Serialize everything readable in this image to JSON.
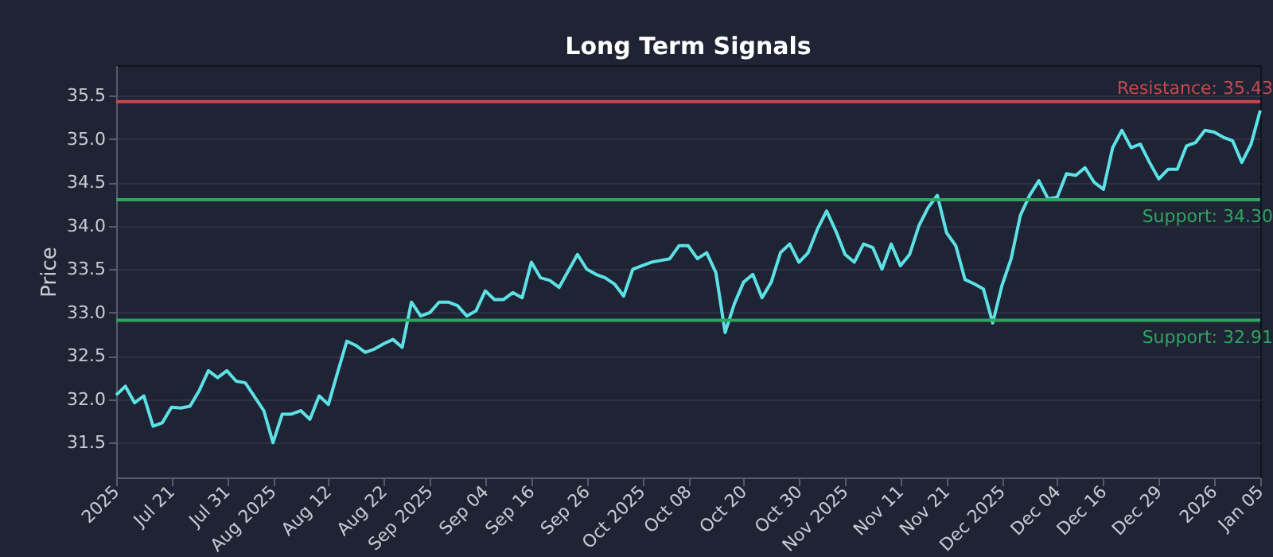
{
  "chart_data": {
    "type": "line",
    "title": "Long Term Signals",
    "ylabel": "Price",
    "categories": [
      "2025",
      null,
      null,
      null,
      null,
      null,
      "Jul 21",
      null,
      null,
      null,
      null,
      null,
      "Jul 31",
      null,
      null,
      null,
      null,
      "Aug 2025",
      null,
      null,
      null,
      null,
      null,
      "Aug 12",
      null,
      null,
      null,
      null,
      null,
      "Aug 22",
      null,
      null,
      null,
      null,
      "Sep 2025",
      null,
      null,
      null,
      null,
      null,
      "Sep 04",
      null,
      null,
      null,
      null,
      "Sep 16",
      null,
      null,
      null,
      null,
      null,
      "Sep 26",
      null,
      null,
      null,
      null,
      null,
      "Oct 2025",
      null,
      null,
      null,
      null,
      "Oct 08",
      null,
      null,
      null,
      null,
      null,
      "Oct 20",
      null,
      null,
      null,
      null,
      null,
      "Oct 30",
      null,
      null,
      null,
      null,
      "Nov 2025",
      null,
      null,
      null,
      null,
      null,
      "Nov 11",
      null,
      null,
      null,
      null,
      "Nov 21",
      null,
      null,
      null,
      null,
      null,
      "Dec 2025",
      null,
      null,
      null,
      null,
      null,
      "Dec 04",
      null,
      null,
      null,
      null,
      "Dec 16",
      null,
      null,
      null,
      null,
      null,
      "Dec 29",
      null,
      null,
      null,
      null,
      null,
      "2026",
      null,
      null,
      null,
      null,
      "Jan 05"
    ],
    "series": [
      {
        "color": "#5ce1e6",
        "values": [
          32.05,
          32.15,
          31.96,
          32.04,
          31.69,
          31.73,
          31.91,
          31.9,
          31.92,
          32.1,
          32.33,
          32.25,
          32.33,
          32.21,
          32.19,
          32.03,
          31.87,
          31.5,
          31.83,
          31.83,
          31.87,
          31.77,
          32.04,
          31.94,
          32.31,
          32.67,
          32.62,
          32.54,
          32.58,
          32.64,
          32.69,
          32.6,
          33.12,
          32.96,
          33.0,
          33.12,
          33.12,
          33.08,
          32.96,
          33.02,
          33.25,
          33.15,
          33.15,
          33.23,
          33.17,
          33.58,
          33.4,
          33.37,
          33.29,
          33.48,
          33.67,
          33.5,
          33.44,
          33.4,
          33.33,
          33.19,
          33.5,
          33.54,
          33.58,
          33.6,
          33.62,
          33.77,
          33.77,
          33.62,
          33.69,
          33.46,
          32.77,
          33.1,
          33.35,
          33.44,
          33.17,
          33.35,
          33.69,
          33.79,
          33.58,
          33.69,
          33.96,
          34.17,
          33.94,
          33.67,
          33.58,
          33.79,
          33.75,
          33.5,
          33.79,
          33.54,
          33.67,
          34.0,
          34.21,
          34.35,
          33.92,
          33.77,
          33.38,
          33.33,
          33.27,
          32.88,
          33.31,
          33.62,
          34.12,
          34.35,
          34.52,
          34.31,
          34.33,
          34.6,
          34.58,
          34.67,
          34.5,
          34.42,
          34.9,
          35.1,
          34.9,
          34.94,
          34.73,
          34.54,
          34.65,
          34.65,
          34.92,
          34.96,
          35.1,
          35.08,
          35.02,
          34.98,
          34.73,
          34.94,
          35.33
        ]
      }
    ],
    "ylim": [
      31.1,
      35.85
    ],
    "yticks": [
      {
        "value": 31.5,
        "label": "31.5"
      },
      {
        "value": 32,
        "label": "32.0"
      },
      {
        "value": 32.5,
        "label": "32.5"
      },
      {
        "value": 33,
        "label": "33.0"
      },
      {
        "value": 33.5,
        "label": "33.5"
      },
      {
        "value": 34,
        "label": "34.0"
      },
      {
        "value": 34.5,
        "label": "34.5"
      },
      {
        "value": 35,
        "label": "35.0"
      },
      {
        "value": 35.5,
        "label": "35.5"
      }
    ],
    "grid": "y",
    "line_style": "solid",
    "marker": "none",
    "ref_lines": [
      {
        "axis": "y",
        "value": 35.43,
        "label": "Resistance: 35.43",
        "color": "#c9474d"
      },
      {
        "axis": "y",
        "value": 34.3,
        "label": "Support: 34.30",
        "color": "#2ea55f"
      },
      {
        "axis": "y",
        "value": 32.91,
        "label": "Support: 32.91",
        "color": "#2ea55f"
      }
    ]
  }
}
